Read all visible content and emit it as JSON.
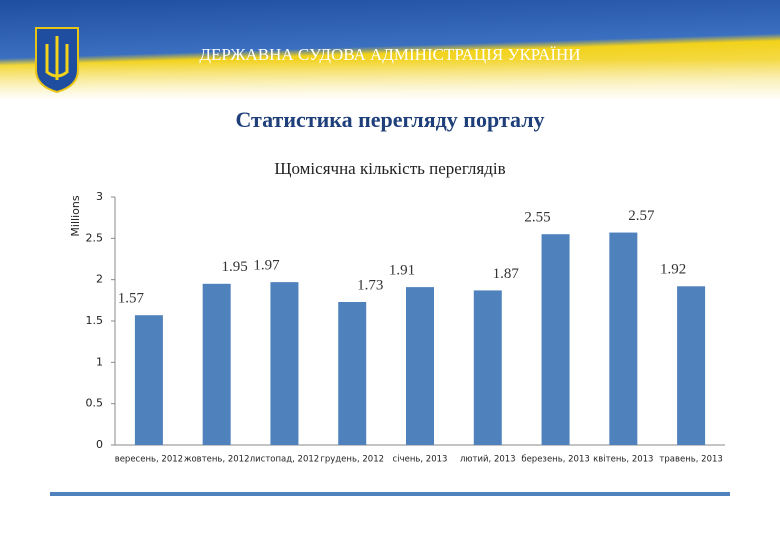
{
  "header": {
    "organization": "ДЕРЖАВНА СУДОВА АДМІНІСТРАЦІЯ УКРАЇНИ",
    "title": "Статистика перегляду порталу"
  },
  "chart_data": {
    "type": "bar",
    "title": "Щомісячна кількість переглядів",
    "y_label": "Millions",
    "categories": [
      "вересень, 2012",
      "жовтень, 2012",
      "листопад, 2012",
      "грудень, 2012",
      "січень, 2013",
      "лютий, 2013",
      "березень, 2013",
      "квітень, 2013",
      "травень, 2013"
    ],
    "values": [
      1.57,
      1.95,
      1.97,
      1.73,
      1.91,
      1.87,
      2.55,
      2.57,
      1.92
    ],
    "color": "#4f81bd",
    "ylim": [
      0,
      3
    ],
    "yticks": [
      0,
      0.5,
      1,
      1.5,
      2,
      2.5,
      3
    ],
    "grid": false
  }
}
